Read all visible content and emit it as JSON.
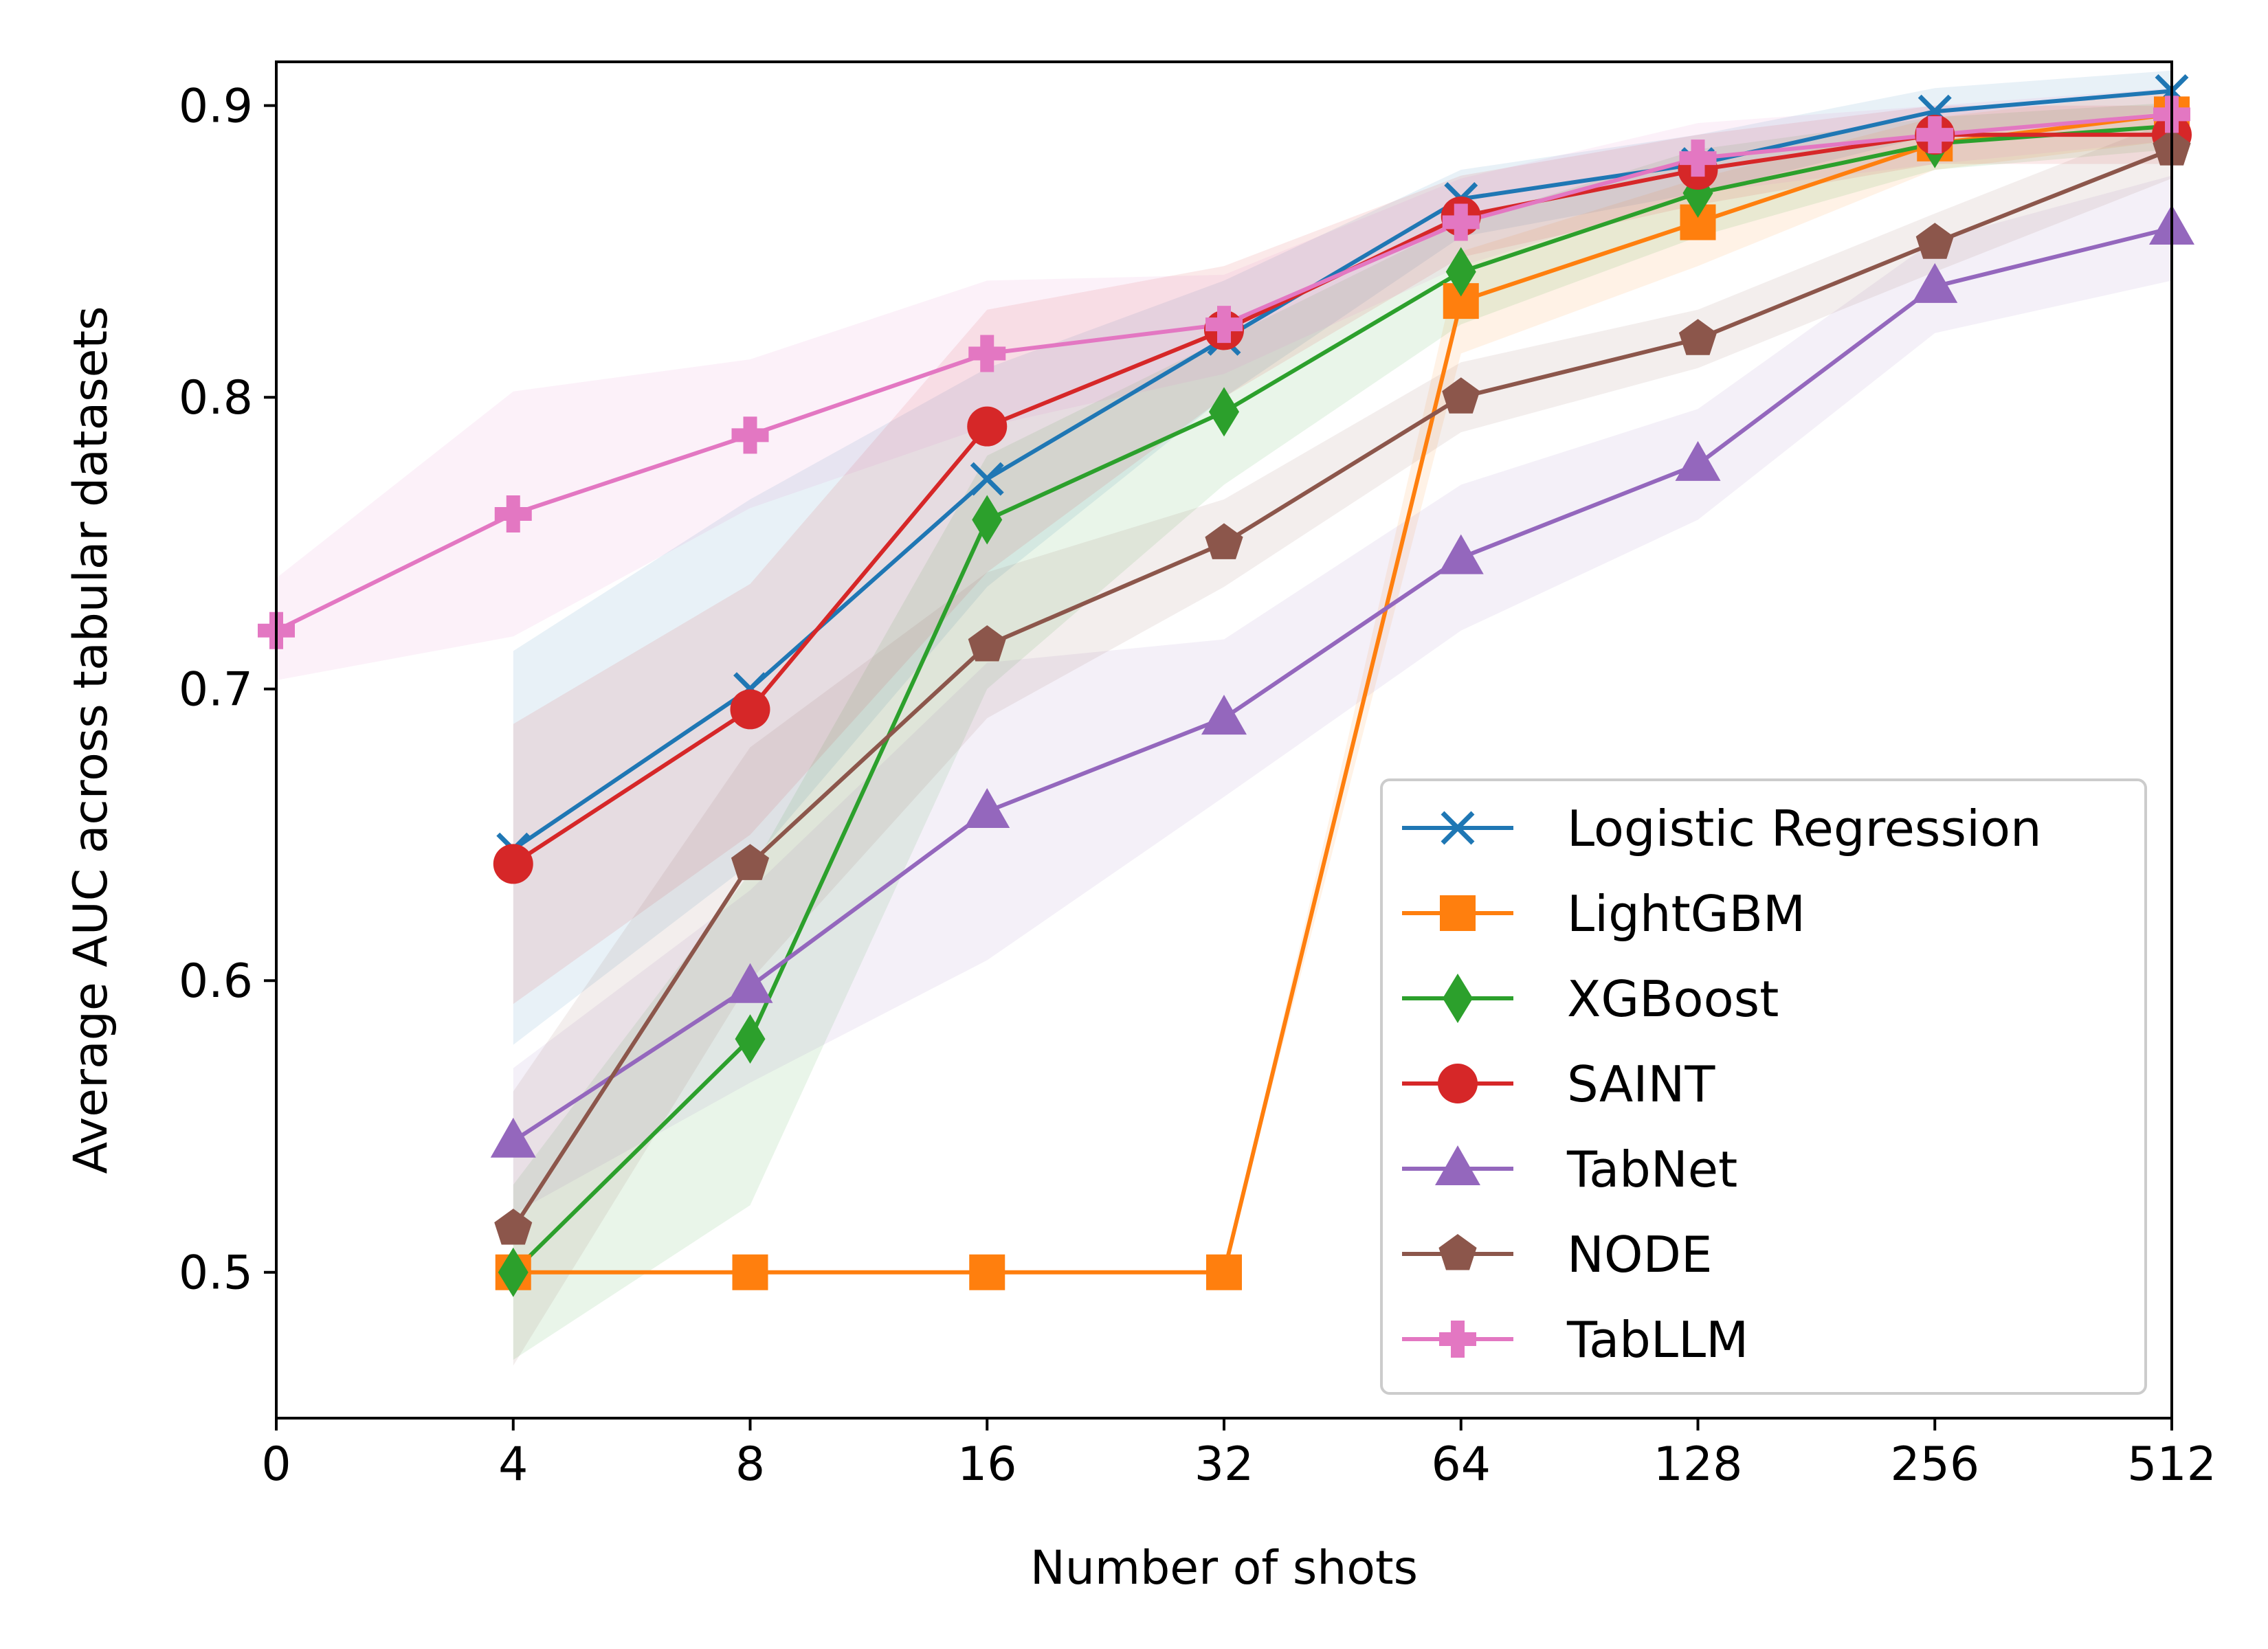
{
  "chart_data": {
    "type": "line",
    "xlabel": "Number of shots",
    "ylabel": "Average AUC across tabular datasets",
    "x_ticks": [
      "0",
      "4",
      "8",
      "16",
      "32",
      "64",
      "128",
      "256",
      "512"
    ],
    "y_ticks": [
      "0.5",
      "0.6",
      "0.7",
      "0.8",
      "0.9"
    ],
    "ylim": [
      0.45,
      0.915
    ],
    "grid": false,
    "legend_position": "lower-right",
    "series": [
      {
        "name": "Logistic Regression",
        "color": "#1f77b4",
        "marker": "x",
        "x": [
          "4",
          "8",
          "16",
          "32",
          "64",
          "128",
          "256",
          "512"
        ],
        "values": [
          0.645,
          0.7,
          0.772,
          0.82,
          0.868,
          0.88,
          0.898,
          0.905
        ],
        "band_low": [
          0.578,
          0.64,
          0.735,
          0.8,
          0.855,
          0.87,
          0.89,
          0.898
        ],
        "band_high": [
          0.713,
          0.765,
          0.81,
          0.84,
          0.878,
          0.89,
          0.906,
          0.912
        ]
      },
      {
        "name": "LightGBM",
        "color": "#ff7f0e",
        "marker": "square",
        "x": [
          "4",
          "8",
          "16",
          "32",
          "64",
          "128",
          "256",
          "512"
        ],
        "values": [
          0.5,
          0.5,
          0.5,
          0.5,
          0.833,
          0.86,
          0.887,
          0.897
        ],
        "band_low": [
          0.5,
          0.5,
          0.5,
          0.5,
          0.815,
          0.845,
          0.878,
          0.888
        ],
        "band_high": [
          0.5,
          0.5,
          0.5,
          0.5,
          0.85,
          0.875,
          0.896,
          0.905
        ]
      },
      {
        "name": "XGBoost",
        "color": "#2ca02c",
        "marker": "diamond",
        "x": [
          "4",
          "8",
          "16",
          "32",
          "64",
          "128",
          "256",
          "512"
        ],
        "values": [
          0.5,
          0.58,
          0.758,
          0.795,
          0.843,
          0.87,
          0.887,
          0.893
        ],
        "band_low": [
          0.47,
          0.523,
          0.7,
          0.77,
          0.825,
          0.855,
          0.878,
          0.885
        ],
        "band_high": [
          0.53,
          0.637,
          0.78,
          0.82,
          0.86,
          0.885,
          0.896,
          0.901
        ]
      },
      {
        "name": "SAINT",
        "color": "#d62728",
        "marker": "circle",
        "x": [
          "4",
          "8",
          "16",
          "32",
          "64",
          "128",
          "256",
          "512"
        ],
        "values": [
          0.64,
          0.693,
          0.79,
          0.823,
          0.862,
          0.878,
          0.89,
          0.89
        ],
        "band_low": [
          0.592,
          0.65,
          0.74,
          0.8,
          0.848,
          0.866,
          0.88,
          0.88
        ],
        "band_high": [
          0.688,
          0.736,
          0.83,
          0.845,
          0.876,
          0.89,
          0.9,
          0.9
        ]
      },
      {
        "name": "TabNet",
        "color": "#9467bd",
        "marker": "triangle",
        "x": [
          "4",
          "8",
          "16",
          "32",
          "64",
          "128",
          "256",
          "512"
        ],
        "values": [
          0.545,
          0.598,
          0.658,
          0.69,
          0.745,
          0.777,
          0.838,
          0.858
        ],
        "band_low": [
          0.52,
          0.565,
          0.607,
          0.663,
          0.72,
          0.758,
          0.822,
          0.84
        ],
        "band_high": [
          0.57,
          0.631,
          0.709,
          0.717,
          0.77,
          0.796,
          0.854,
          0.876
        ]
      },
      {
        "name": "NODE",
        "color": "#8c564b",
        "marker": "pentagon",
        "x": [
          "4",
          "8",
          "16",
          "32",
          "64",
          "128",
          "256",
          "512"
        ],
        "values": [
          0.515,
          0.64,
          0.715,
          0.75,
          0.8,
          0.82,
          0.853,
          0.885
        ],
        "band_low": [
          0.468,
          0.6,
          0.69,
          0.735,
          0.788,
          0.81,
          0.843,
          0.875
        ],
        "band_high": [
          0.562,
          0.68,
          0.74,
          0.765,
          0.812,
          0.83,
          0.863,
          0.895
        ]
      },
      {
        "name": "TabLLM",
        "color": "#e377c2",
        "marker": "plus",
        "x": [
          "0",
          "4",
          "8",
          "16",
          "32",
          "64",
          "128",
          "256",
          "512"
        ],
        "values": [
          0.72,
          0.76,
          0.787,
          0.815,
          0.825,
          0.86,
          0.882,
          0.89,
          0.897
        ],
        "band_low": [
          0.703,
          0.718,
          0.762,
          0.79,
          0.808,
          0.845,
          0.87,
          0.88,
          0.888
        ],
        "band_high": [
          0.738,
          0.802,
          0.813,
          0.84,
          0.842,
          0.875,
          0.894,
          0.9,
          0.906
        ]
      }
    ]
  }
}
